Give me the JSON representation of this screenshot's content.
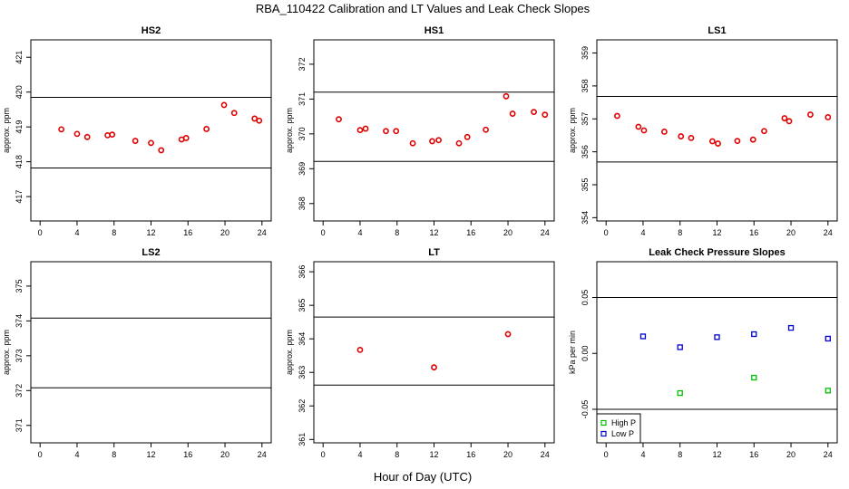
{
  "figure": {
    "title": "RBA_110422  Calibration and LT Values and Leak Check Slopes",
    "xlabel": "Hour of Day (UTC)"
  },
  "chart_data": [
    {
      "type": "scatter",
      "title": "HS2",
      "ylabel": "approx. ppm",
      "xlim": [
        -1,
        25
      ],
      "ylim": [
        416.3,
        421.5
      ],
      "xticks": [
        0,
        4,
        8,
        12,
        16,
        20,
        24
      ],
      "yticks": [
        417,
        418,
        419,
        420,
        421
      ],
      "hlines": [
        417.82,
        419.85
      ],
      "series": [
        {
          "color": "#e00000",
          "marker": "circle",
          "x": [
            2.3,
            4.0,
            5.1,
            7.3,
            7.8,
            10.3,
            12.0,
            13.1,
            15.3,
            15.8,
            18.0,
            19.9,
            21.0,
            23.2,
            23.7
          ],
          "y": [
            418.93,
            418.8,
            418.71,
            418.76,
            418.78,
            418.6,
            418.54,
            418.33,
            418.64,
            418.68,
            418.94,
            419.63,
            419.4,
            419.24,
            419.18
          ]
        }
      ]
    },
    {
      "type": "scatter",
      "title": "HS1",
      "ylabel": "approx. ppm",
      "xlim": [
        -1,
        25
      ],
      "ylim": [
        367.5,
        372.7
      ],
      "xticks": [
        0,
        4,
        8,
        12,
        16,
        20,
        24
      ],
      "yticks": [
        368,
        369,
        370,
        371,
        372
      ],
      "hlines": [
        369.21,
        371.2
      ],
      "series": [
        {
          "color": "#e00000",
          "marker": "circle",
          "x": [
            1.7,
            4.0,
            4.6,
            6.8,
            7.9,
            9.7,
            11.8,
            12.5,
            14.7,
            15.6,
            17.6,
            19.8,
            20.5,
            22.8,
            24.0
          ],
          "y": [
            370.42,
            370.11,
            370.15,
            370.08,
            370.08,
            369.73,
            369.79,
            369.82,
            369.73,
            369.91,
            370.12,
            371.08,
            370.58,
            370.63,
            370.55
          ]
        }
      ]
    },
    {
      "type": "scatter",
      "title": "LS1",
      "ylabel": "approx. ppm",
      "xlim": [
        -1,
        25
      ],
      "ylim": [
        353.9,
        359.4
      ],
      "xticks": [
        0,
        4,
        8,
        12,
        16,
        20,
        24
      ],
      "yticks": [
        354,
        355,
        356,
        357,
        358,
        359
      ],
      "hlines": [
        355.69,
        357.68
      ],
      "series": [
        {
          "color": "#e00000",
          "marker": "circle",
          "x": [
            1.2,
            3.5,
            4.1,
            6.3,
            8.1,
            9.2,
            11.5,
            12.1,
            14.2,
            15.9,
            17.1,
            19.3,
            19.8,
            22.1,
            24.0
          ],
          "y": [
            357.09,
            356.76,
            356.65,
            356.61,
            356.47,
            356.42,
            356.32,
            356.25,
            356.33,
            356.37,
            356.63,
            357.02,
            356.93,
            357.13,
            357.05
          ]
        }
      ]
    },
    {
      "type": "scatter",
      "title": "LS2",
      "ylabel": "approx. ppm",
      "xlim": [
        -1,
        25
      ],
      "ylim": [
        370.5,
        375.7
      ],
      "xticks": [
        0,
        4,
        8,
        12,
        16,
        20,
        24
      ],
      "yticks": [
        371,
        372,
        373,
        374,
        375
      ],
      "hlines": [
        372.08,
        374.08
      ],
      "series": []
    },
    {
      "type": "scatter",
      "title": "LT",
      "ylabel": "approx. ppm",
      "xlim": [
        -1,
        25
      ],
      "ylim": [
        360.9,
        366.3
      ],
      "xticks": [
        0,
        4,
        8,
        12,
        16,
        20,
        24
      ],
      "yticks": [
        361,
        362,
        363,
        364,
        365,
        366
      ],
      "hlines": [
        362.62,
        364.65
      ],
      "series": [
        {
          "color": "#e00000",
          "marker": "circle",
          "x": [
            4.0,
            12.0,
            20.0
          ],
          "y": [
            363.67,
            363.15,
            364.14
          ]
        }
      ]
    },
    {
      "type": "scatter",
      "title": "Leak Check Pressure Slopes",
      "ylabel": "kPa per min",
      "xlim": [
        -1,
        25
      ],
      "ylim": [
        -0.08,
        0.082
      ],
      "xticks": [
        0,
        4,
        8,
        12,
        16,
        20,
        24
      ],
      "yticks": [
        -0.05,
        0.0,
        0.05
      ],
      "ytick_labels": [
        "-0.05",
        "0.00",
        "0.05"
      ],
      "hlines": [
        -0.05,
        0.05
      ],
      "legend": "bottom-left",
      "series": [
        {
          "name": "High P",
          "color": "#00c000",
          "marker": "square",
          "x": [
            8.0,
            16.0,
            24.0
          ],
          "y": [
            -0.0355,
            -0.0217,
            -0.0333
          ]
        },
        {
          "name": "Low P",
          "color": "#0000d0",
          "marker": "square",
          "x": [
            4.0,
            8.0,
            12.0,
            16.0,
            20.0,
            24.0
          ],
          "y": [
            0.0152,
            0.0055,
            0.0145,
            0.0172,
            0.0228,
            0.0132
          ]
        }
      ]
    }
  ]
}
